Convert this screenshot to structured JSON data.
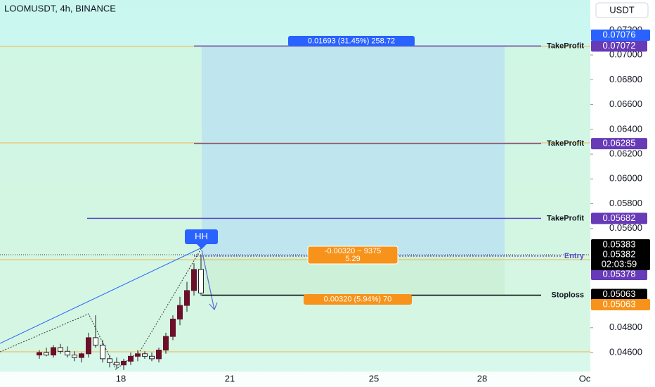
{
  "chart_data": {
    "type": "candlestick",
    "title": "LOOMUSDT, 4h, BINANCE",
    "currency": "USDT",
    "ylim": [
      0.04447,
      0.07443
    ],
    "yticks": [
      {
        "value": 0.072,
        "label": "0.07200"
      },
      {
        "value": 0.07,
        "label": "0.07000"
      },
      {
        "value": 0.068,
        "label": "0.06800"
      },
      {
        "value": 0.066,
        "label": "0.06600"
      },
      {
        "value": 0.064,
        "label": "0.06400"
      },
      {
        "value": 0.062,
        "label": "0.06200"
      },
      {
        "value": 0.06,
        "label": "0.06000"
      },
      {
        "value": 0.058,
        "label": "0.05800"
      },
      {
        "value": 0.056,
        "label": "0.05600"
      },
      {
        "value": 0.048,
        "label": "0.04800"
      },
      {
        "value": 0.046,
        "label": "0.04600"
      }
    ],
    "x_labels": [
      "18",
      "21",
      "25",
      "28",
      "Oc"
    ],
    "candles": [
      [
        0.0458,
        0.0462,
        0.0455,
        0.046
      ],
      [
        0.046,
        0.0464,
        0.0457,
        0.0458
      ],
      [
        0.0458,
        0.0466,
        0.0456,
        0.0464
      ],
      [
        0.0464,
        0.0467,
        0.0459,
        0.0461
      ],
      [
        0.0461,
        0.0465,
        0.0456,
        0.0458
      ],
      [
        0.0458,
        0.0461,
        0.0453,
        0.0456
      ],
      [
        0.0456,
        0.046,
        0.0452,
        0.0459
      ],
      [
        0.0459,
        0.0476,
        0.0456,
        0.0472
      ],
      [
        0.0472,
        0.049,
        0.0464,
        0.0466
      ],
      [
        0.0466,
        0.047,
        0.0452,
        0.0455
      ],
      [
        0.0455,
        0.0458,
        0.0448,
        0.0452
      ],
      [
        0.0452,
        0.0456,
        0.0447,
        0.045
      ],
      [
        0.045,
        0.0455,
        0.0446,
        0.0453
      ],
      [
        0.0453,
        0.046,
        0.045,
        0.0457
      ],
      [
        0.0457,
        0.0462,
        0.0453,
        0.0459
      ],
      [
        0.0459,
        0.0461,
        0.0455,
        0.0457
      ],
      [
        0.0457,
        0.046,
        0.0453,
        0.0455
      ],
      [
        0.0455,
        0.0464,
        0.0452,
        0.0462
      ],
      [
        0.0462,
        0.0476,
        0.0459,
        0.0473
      ],
      [
        0.0473,
        0.049,
        0.047,
        0.0487
      ],
      [
        0.0487,
        0.0505,
        0.0482,
        0.0498
      ],
      [
        0.0498,
        0.0517,
        0.0493,
        0.051
      ],
      [
        0.051,
        0.0532,
        0.0506,
        0.0527
      ],
      [
        0.0527,
        0.0539,
        0.0506,
        0.0508
      ]
    ],
    "levels": [
      {
        "name": "TakeProfit",
        "value": 0.07072
      },
      {
        "name": "TakeProfit",
        "value": 0.06285
      },
      {
        "name": "TakeProfit",
        "value": 0.05682
      },
      {
        "name": "Entry",
        "value": 0.05378
      },
      {
        "name": "Stoploss",
        "value": 0.05063
      }
    ],
    "badges": [
      {
        "value": 0.07076,
        "color": "#2962ff"
      },
      {
        "value": 0.05383,
        "color": "#000000"
      },
      {
        "value": 0.05382,
        "color": "#000000",
        "sub": "02:03:59"
      },
      {
        "value": 0.05063,
        "color": "#f7931a"
      }
    ],
    "annotations": {
      "target": "0.01693 (31.45%) 258.72",
      "entry_1": "-0.00320 ~ 9375",
      "entry_2": "5.29",
      "stop": "0.00320 (5.94%) 70",
      "pattern": "HH"
    }
  }
}
